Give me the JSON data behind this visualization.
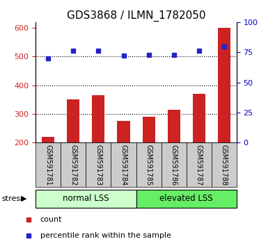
{
  "title": "GDS3868 / ILMN_1782050",
  "samples": [
    "GSM591781",
    "GSM591782",
    "GSM591783",
    "GSM591784",
    "GSM591785",
    "GSM591786",
    "GSM591787",
    "GSM591788"
  ],
  "counts": [
    220,
    350,
    365,
    275,
    290,
    315,
    370,
    600
  ],
  "percentiles": [
    70,
    76,
    76,
    72,
    73,
    73,
    76,
    80
  ],
  "ylim_left": [
    200,
    620
  ],
  "ylim_right": [
    0,
    100
  ],
  "yticks_left": [
    200,
    300,
    400,
    500,
    600
  ],
  "yticks_right": [
    0,
    25,
    50,
    75,
    100
  ],
  "bar_color": "#cc2222",
  "dot_color": "#2222cc",
  "group1_label": "normal LSS",
  "group2_label": "elevated LSS",
  "group1_color": "#ccffcc",
  "group2_color": "#66ee66",
  "stress_label": "stress",
  "legend_items": [
    "count",
    "percentile rank within the sample"
  ],
  "left_tick_color": "#cc2222",
  "right_tick_color": "#0000cc",
  "title_fontsize": 11,
  "bar_width": 0.5,
  "grid_dotted_at": [
    300,
    400,
    500
  ],
  "sample_box_color": "#cccccc",
  "border_color": "#000000"
}
